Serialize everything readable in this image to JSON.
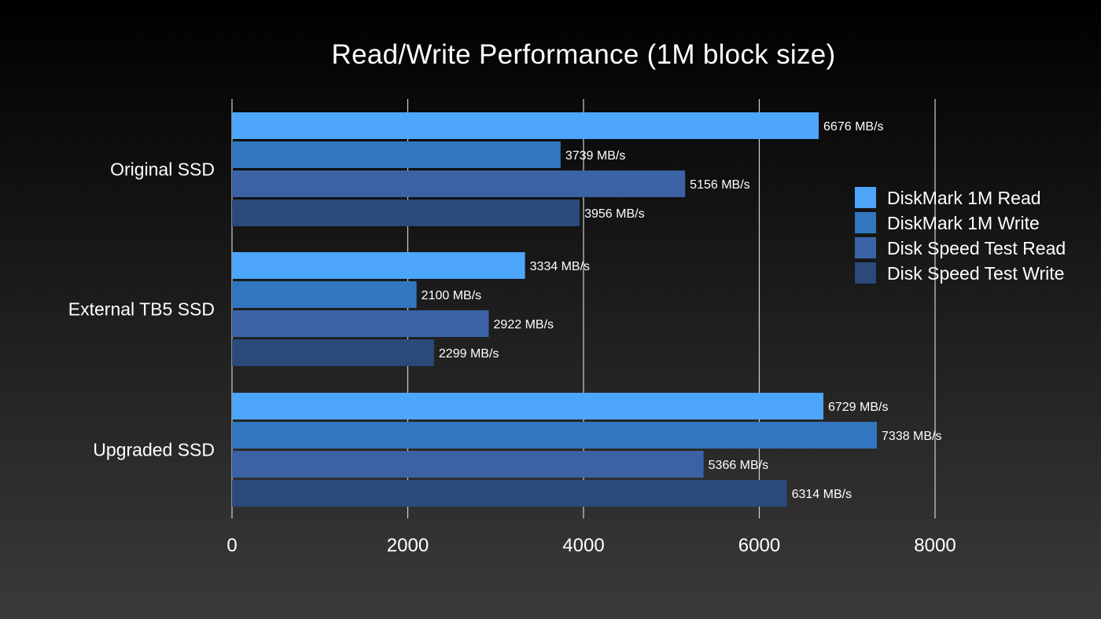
{
  "chart_data": {
    "type": "bar",
    "orientation": "horizontal",
    "title": "Read/Write Performance (1M block size)",
    "xlabel": "",
    "ylabel": "",
    "categories": [
      "Original SSD",
      "External TB5 SSD",
      "Upgraded SSD"
    ],
    "series": [
      {
        "name": "DiskMark 1M Read",
        "values": [
          6676,
          3334,
          6729
        ],
        "color": "#4da6fa"
      },
      {
        "name": "DiskMark 1M Write",
        "values": [
          3739,
          2100,
          7338
        ],
        "color": "#3176bf"
      },
      {
        "name": "Disk Speed Test Read",
        "values": [
          5156,
          2922,
          5366
        ],
        "color": "#3a62a5"
      },
      {
        "name": "Disk Speed Test Write",
        "values": [
          3956,
          2299,
          6314
        ],
        "color": "#2b4a7a"
      }
    ],
    "value_unit": "MB/s",
    "xlim": [
      0,
      8000
    ],
    "xticks": [
      0,
      2000,
      4000,
      6000,
      8000
    ],
    "grid": true,
    "legend_position": "right"
  }
}
